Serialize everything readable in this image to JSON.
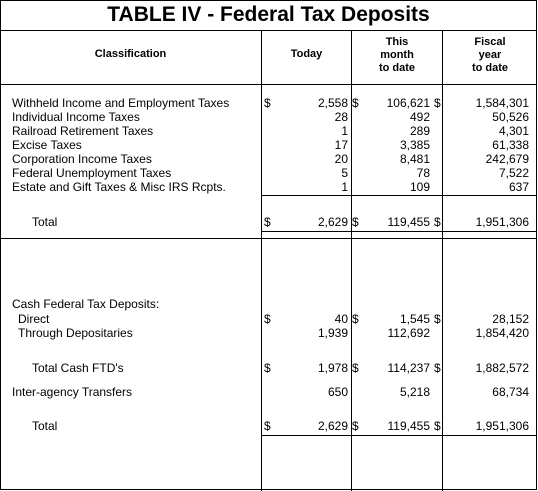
{
  "title": "TABLE IV - Federal Tax Deposits",
  "headers": {
    "classification": "Classification",
    "today": "Today",
    "month_line1": "This",
    "month_line2": "month",
    "month_line3": "to date",
    "fiscal_line1": "Fiscal",
    "fiscal_line2": "year",
    "fiscal_line3": "to date"
  },
  "currency_symbol": "$",
  "deposits": [
    {
      "label": "Withheld Income and Employment Taxes",
      "today": "2,558",
      "month": "106,621",
      "fiscal": "1,584,301"
    },
    {
      "label": "Individual Income Taxes",
      "today": "28",
      "month": "492",
      "fiscal": "50,526"
    },
    {
      "label": "Railroad Retirement Taxes",
      "today": "1",
      "month": "289",
      "fiscal": "4,301"
    },
    {
      "label": "Excise Taxes",
      "today": "17",
      "month": "3,385",
      "fiscal": "61,338"
    },
    {
      "label": "Corporation Income Taxes",
      "today": "20",
      "month": "8,481",
      "fiscal": "242,679"
    },
    {
      "label": "Federal Unemployment Taxes",
      "today": "5",
      "month": "78",
      "fiscal": "7,522"
    },
    {
      "label": "Estate and Gift Taxes & Misc IRS Rcpts.",
      "today": "1",
      "month": "109",
      "fiscal": "637"
    }
  ],
  "total_1": {
    "label": "Total",
    "today": "2,629",
    "month": "119,455",
    "fiscal": "1,951,306"
  },
  "cash_heading": "Cash Federal Tax Deposits:",
  "direct": {
    "label": "Direct",
    "today": "40",
    "month": "1,545",
    "fiscal": "28,152"
  },
  "depositaries": {
    "label": "Through Depositaries",
    "today": "1,939",
    "month": "112,692",
    "fiscal": "1,854,420"
  },
  "total_cash": {
    "label": "Total Cash FTD's",
    "today": "1,978",
    "month": "114,237",
    "fiscal": "1,882,572"
  },
  "inter_agency": {
    "label": "Inter-agency Transfers",
    "today": "650",
    "month": "5,218",
    "fiscal": "68,734"
  },
  "total_2": {
    "label": "Total",
    "today": "2,629",
    "month": "119,455",
    "fiscal": "1,951,306"
  }
}
